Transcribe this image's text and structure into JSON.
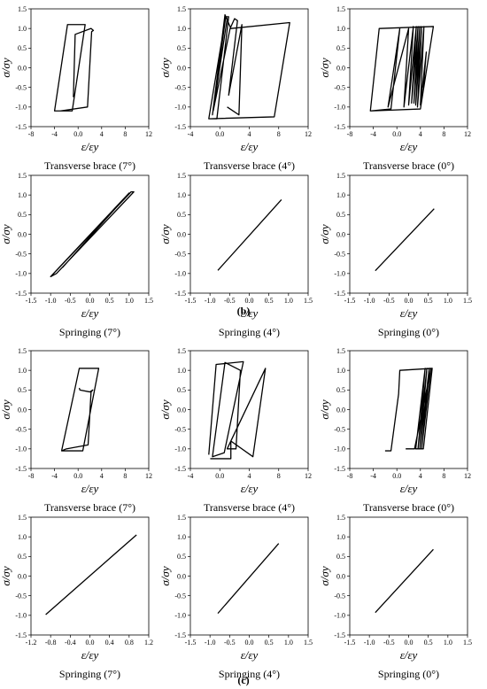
{
  "panel_labels": [
    "(b)",
    "(c)"
  ],
  "chart_data": [
    {
      "type": "line",
      "title": "Transverse brace (7°)",
      "xlabel": "ε/εy",
      "ylabel": "σ/σy",
      "xlim": [
        -8,
        12
      ],
      "ylim": [
        -1.5,
        1.5
      ],
      "xticks": [
        -8,
        -4,
        0,
        4,
        8,
        12
      ],
      "yticks": [
        -1.5,
        -1.0,
        -0.5,
        0.0,
        0.5,
        1.0,
        1.5
      ],
      "series": [
        {
          "x": [
            -4.0,
            -1.8,
            1.2,
            -1.0,
            -4.0,
            -3.0,
            1.6,
            2.3,
            2.6,
            2.2,
            -0.5,
            -0.8
          ],
          "y": [
            -1.1,
            1.1,
            1.1,
            -1.1,
            -1.1,
            -1.1,
            -1.0,
            0.92,
            0.95,
            1.0,
            0.85,
            -0.75
          ]
        }
      ]
    },
    {
      "type": "line",
      "title": "Transverse brace (4°)",
      "xlabel": "ε/εy",
      "ylabel": "σ/σy",
      "xlim": [
        -4,
        12
      ],
      "ylim": [
        -1.5,
        1.5
      ],
      "xticks": [
        -4,
        0,
        4,
        8,
        12
      ],
      "yticks": [
        -1.5,
        -1.0,
        -0.5,
        0.0,
        0.5,
        1.0,
        1.5
      ],
      "series": [
        {
          "x": [
            -1.5,
            0.8,
            1.2,
            -0.4,
            -1.5,
            7.4,
            9.5,
            1.5,
            0.7,
            -1.0,
            0.8,
            1.0,
            -0.9,
            1.4,
            2.0,
            2.4,
            1.2,
            3.0,
            2.6,
            1.0
          ],
          "y": [
            -1.3,
            1.3,
            1.3,
            -1.3,
            -1.3,
            -1.25,
            1.15,
            1.0,
            1.35,
            -1.2,
            1.3,
            1.25,
            -1.1,
            1.0,
            1.25,
            1.2,
            -0.7,
            1.1,
            -1.2,
            -1.0
          ]
        }
      ]
    },
    {
      "type": "line",
      "title": "Transverse brace (0°)",
      "xlabel": "ε/εy",
      "ylabel": "σ/σy",
      "xlim": [
        -8,
        12
      ],
      "ylim": [
        -1.5,
        1.5
      ],
      "xticks": [
        -8,
        -4,
        0,
        4,
        8,
        12
      ],
      "yticks": [
        -1.5,
        -1.0,
        -0.5,
        0.0,
        0.5,
        1.0,
        1.5
      ],
      "series": [
        {
          "x": [
            -4.5,
            -3.0,
            6.2,
            4.0,
            -4.5,
            -1.0,
            0.5,
            -1.5,
            2.0,
            1.2,
            2.8,
            2.0,
            3.3,
            2.5,
            3.6,
            2.9,
            3.9,
            3.2,
            4.2,
            3.5,
            4.6,
            4.0,
            5.0,
            4.5
          ],
          "y": [
            -1.1,
            1.0,
            1.05,
            -1.05,
            -1.1,
            -1.05,
            1.0,
            -1.0,
            1.0,
            -1.0,
            1.05,
            -0.95,
            1.05,
            -0.9,
            1.05,
            -0.9,
            1.05,
            -0.95,
            1.05,
            -1.0,
            1.05,
            -0.95,
            0.4,
            -0.5
          ]
        }
      ]
    },
    {
      "type": "line",
      "title": "Springing (7°)",
      "xlabel": "ε/εy",
      "ylabel": "σ/σy",
      "xlim": [
        -1.5,
        1.5
      ],
      "ylim": [
        -1.5,
        1.5
      ],
      "xticks": [
        -1.5,
        -1.0,
        -0.5,
        0.0,
        0.5,
        1.0,
        1.5
      ],
      "yticks": [
        -1.5,
        -1.0,
        -0.5,
        0.0,
        0.5,
        1.0,
        1.5
      ],
      "series": [
        {
          "x": [
            -1.0,
            1.05,
            1.12,
            -0.85,
            -1.0,
            -0.55,
            1.0,
            -0.7
          ],
          "y": [
            -1.08,
            1.08,
            1.08,
            -1.0,
            -1.08,
            -0.6,
            1.05,
            -0.85
          ]
        }
      ]
    },
    {
      "type": "line",
      "title": "Springing (4°)",
      "xlabel": "ε/εy",
      "ylabel": "σ/σy",
      "xlim": [
        -1.5,
        1.5
      ],
      "ylim": [
        -1.5,
        1.5
      ],
      "xticks": [
        -1.5,
        -1.0,
        -0.5,
        0.0,
        0.5,
        1.0,
        1.5
      ],
      "yticks": [
        -1.5,
        -1.0,
        -0.5,
        0.0,
        0.5,
        1.0,
        1.5
      ],
      "series": [
        {
          "x": [
            -0.8,
            0.82
          ],
          "y": [
            -0.92,
            0.88
          ]
        }
      ]
    },
    {
      "type": "line",
      "title": "Springing (0°)",
      "xlabel": "ε/εy",
      "ylabel": "σ/σy",
      "xlim": [
        -1.5,
        1.5
      ],
      "ylim": [
        -1.5,
        1.5
      ],
      "xticks": [
        -1.5,
        -1.0,
        -0.5,
        0.0,
        0.5,
        1.0,
        1.5
      ],
      "yticks": [
        -1.5,
        -1.0,
        -0.5,
        0.0,
        0.5,
        1.0,
        1.5
      ],
      "series": [
        {
          "x": [
            -0.85,
            0.65
          ],
          "y": [
            -0.93,
            0.65
          ]
        }
      ]
    },
    {
      "type": "line",
      "title": "Transverse brace (7°)",
      "xlabel": "ε/εy",
      "ylabel": "σ/σy",
      "xlim": [
        -8,
        12
      ],
      "ylim": [
        -1.5,
        1.5
      ],
      "xticks": [
        -8,
        -4,
        0,
        4,
        8,
        12
      ],
      "yticks": [
        -1.5,
        -1.0,
        -0.5,
        0.0,
        0.5,
        1.0,
        1.5
      ],
      "series": [
        {
          "x": [
            -2.8,
            0.2,
            3.5,
            0.8,
            -2.8,
            -2.0,
            1.7,
            2.2,
            2.5,
            2.0,
            0.3,
            0.2
          ],
          "y": [
            -1.05,
            1.05,
            1.05,
            -1.05,
            -1.05,
            -1.0,
            -0.9,
            0.45,
            0.5,
            0.45,
            0.5,
            0.55
          ]
        }
      ]
    },
    {
      "type": "line",
      "title": "Transverse brace (4°)",
      "xlabel": "ε/εy",
      "ylabel": "σ/σy",
      "xlim": [
        -4,
        12
      ],
      "ylim": [
        -1.5,
        1.5
      ],
      "xticks": [
        -4,
        0,
        4,
        8,
        12
      ],
      "yticks": [
        -1.5,
        -1.0,
        -0.5,
        0.0,
        0.5,
        1.0,
        1.5
      ],
      "series": [
        {
          "x": [
            -1.5,
            -0.5,
            3.2,
            0.6,
            -1.0,
            0.7,
            2.8,
            2.2,
            1.0,
            6.2,
            4.5,
            1.5,
            1.5,
            -1.3
          ],
          "y": [
            -1.15,
            1.15,
            1.22,
            -1.1,
            -1.2,
            1.2,
            1.0,
            -1.0,
            -1.0,
            1.05,
            -1.2,
            -0.8,
            -1.25,
            -1.25
          ]
        }
      ]
    },
    {
      "type": "line",
      "title": "Transverse brace (0°)",
      "xlabel": "ε/εy",
      "ylabel": "σ/σy",
      "xlim": [
        -8,
        12
      ],
      "ylim": [
        -1.5,
        1.5
      ],
      "xticks": [
        -8,
        -4,
        0,
        4,
        8,
        12
      ],
      "yticks": [
        -1.5,
        -1.0,
        -0.5,
        0.0,
        0.5,
        1.0,
        1.5
      ],
      "series": [
        {
          "x": [
            -2.0,
            -1.0,
            0.3,
            0.5,
            6.0,
            4.5,
            3.2,
            4.8,
            3.6,
            5.1,
            3.9,
            5.5,
            4.2,
            5.8,
            3.0,
            1.5
          ],
          "y": [
            -1.05,
            -1.05,
            0.4,
            1.0,
            1.05,
            -1.0,
            -1.0,
            1.05,
            -1.0,
            1.05,
            -1.0,
            1.05,
            -1.0,
            1.05,
            -1.0,
            -1.0
          ]
        }
      ]
    },
    {
      "type": "line",
      "title": "Springing (7°)",
      "xlabel": "ε/εy",
      "ylabel": "σ/σy",
      "xlim": [
        -1.2,
        1.2
      ],
      "ylim": [
        -1.5,
        1.5
      ],
      "xticks": [
        -1.2,
        -0.8,
        -0.4,
        0.0,
        0.4,
        0.8,
        1.2
      ],
      "yticks": [
        -1.5,
        -1.0,
        -0.5,
        0.0,
        0.5,
        1.0,
        1.5
      ],
      "series": [
        {
          "x": [
            -0.9,
            0.95
          ],
          "y": [
            -0.98,
            1.05
          ]
        }
      ]
    },
    {
      "type": "line",
      "title": "Springing (4°)",
      "xlabel": "ε/εy",
      "ylabel": "σ/σy",
      "xlim": [
        -1.5,
        1.5
      ],
      "ylim": [
        -1.5,
        1.5
      ],
      "xticks": [
        -1.5,
        -1.0,
        -0.5,
        0.0,
        0.5,
        1.0,
        1.5
      ],
      "yticks": [
        -1.5,
        -1.0,
        -0.5,
        0.0,
        0.5,
        1.0,
        1.5
      ],
      "series": [
        {
          "x": [
            -0.8,
            0.75
          ],
          "y": [
            -0.95,
            0.83
          ]
        }
      ]
    },
    {
      "type": "line",
      "title": "Springing (0°)",
      "xlabel": "ε/εy",
      "ylabel": "σ/σy",
      "xlim": [
        -1.5,
        1.5
      ],
      "ylim": [
        -1.5,
        1.5
      ],
      "xticks": [
        -1.5,
        -1.0,
        -0.5,
        0.0,
        0.5,
        1.0,
        1.5
      ],
      "yticks": [
        -1.5,
        -1.0,
        -0.5,
        0.0,
        0.5,
        1.0,
        1.5
      ],
      "series": [
        {
          "x": [
            -0.85,
            0.63
          ],
          "y": [
            -0.93,
            0.68
          ]
        }
      ]
    }
  ]
}
